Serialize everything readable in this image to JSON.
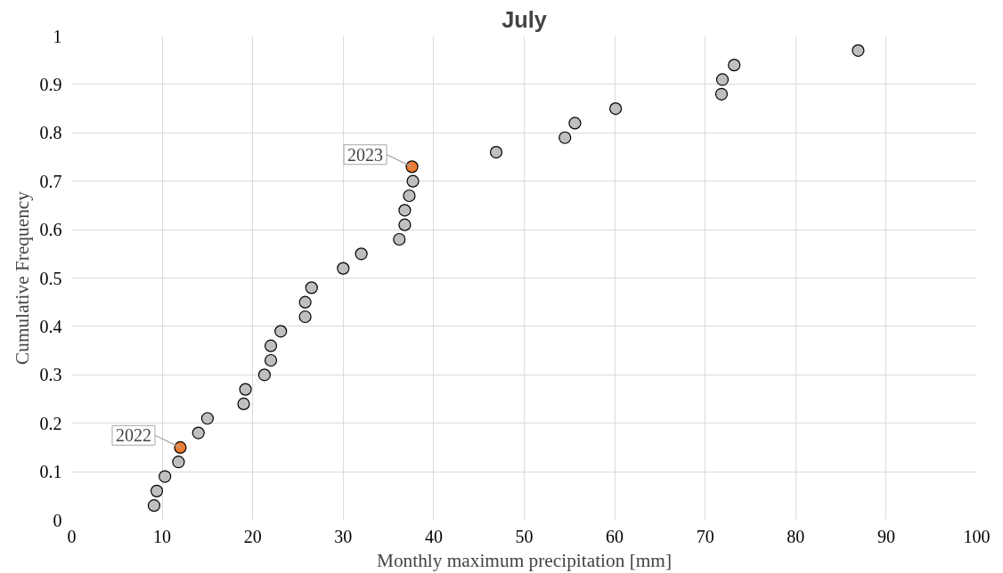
{
  "chart_data": {
    "type": "scatter",
    "title": "July",
    "xlabel": "Monthly maximum precipitation [mm]",
    "ylabel": "Cumulative Frequency",
    "xlim": [
      0,
      100
    ],
    "xticks": [
      0,
      10,
      20,
      30,
      40,
      50,
      60,
      70,
      80,
      90,
      100
    ],
    "ylim": [
      0,
      1
    ],
    "yticks": [
      0,
      0.1,
      0.2,
      0.3,
      0.4,
      0.5,
      0.6,
      0.7,
      0.8,
      0.9,
      1
    ],
    "grid": true,
    "marker": "circle",
    "series": [
      {
        "color": "#bfbfbf",
        "x": [
          9.1,
          9.4,
          10.3,
          11.8,
          14.0,
          15.0,
          19.0,
          19.2,
          21.3,
          22.0,
          22.0,
          23.1,
          25.8,
          25.8,
          26.5,
          30.0,
          32.0,
          36.2,
          36.8,
          36.8,
          37.3,
          37.7,
          46.9,
          54.5,
          55.6,
          60.1,
          71.8,
          71.9,
          73.2,
          86.9
        ],
        "values": [
          0.03,
          0.06,
          0.09,
          0.12,
          0.18,
          0.21,
          0.24,
          0.27,
          0.3,
          0.33,
          0.36,
          0.39,
          0.42,
          0.45,
          0.48,
          0.52,
          0.55,
          0.58,
          0.61,
          0.64,
          0.67,
          0.7,
          0.76,
          0.79,
          0.82,
          0.85,
          0.88,
          0.91,
          0.94,
          0.97
        ]
      },
      {
        "color": "#ed7d31",
        "x": [
          12.0,
          37.6
        ],
        "values": [
          0.15,
          0.73
        ]
      }
    ],
    "annotations": [
      {
        "text": "2022",
        "x": 12.0,
        "y": 0.15
      },
      {
        "text": "2023",
        "x": 37.6,
        "y": 0.73
      }
    ]
  }
}
